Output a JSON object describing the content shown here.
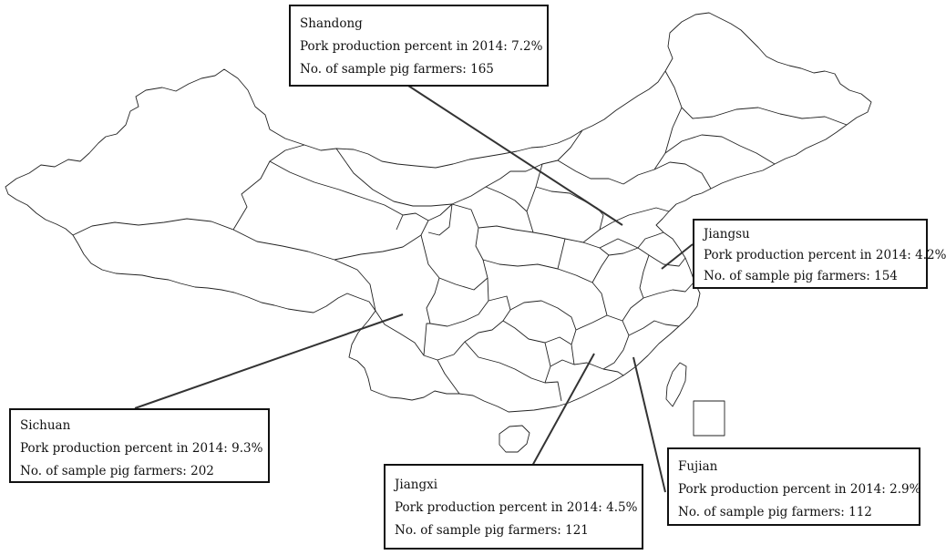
{
  "callouts": [
    {
      "id": "shandong",
      "province": "Shandong",
      "production_label": "Pork production percent in 2014: 7.2%",
      "farmers_label": "No. of sample pig farmers: 165"
    },
    {
      "id": "jiangsu",
      "province": "Jiangsu",
      "production_label": "Pork production percent in 2014:  4.2%",
      "farmers_label": "No. of sample pig farmers: 154"
    },
    {
      "id": "sichuan",
      "province": "Sichuan",
      "production_label": "Pork production percent in 2014: 9.3%",
      "farmers_label": "No. of sample pig farmers: 202"
    },
    {
      "id": "jiangxi",
      "province": "Jiangxi",
      "production_label": "Pork production percent in 2014: 4.5%",
      "farmers_label": "No. of sample pig farmers: 121"
    },
    {
      "id": "fujian",
      "province": "Fujian",
      "production_label": "Pork production percent in 2014: 2.9%",
      "farmers_label": "No. of sample pig farmers: 112"
    }
  ],
  "colors": {
    "outline": "#222222",
    "text": "#111111",
    "background": "#ffffff"
  }
}
